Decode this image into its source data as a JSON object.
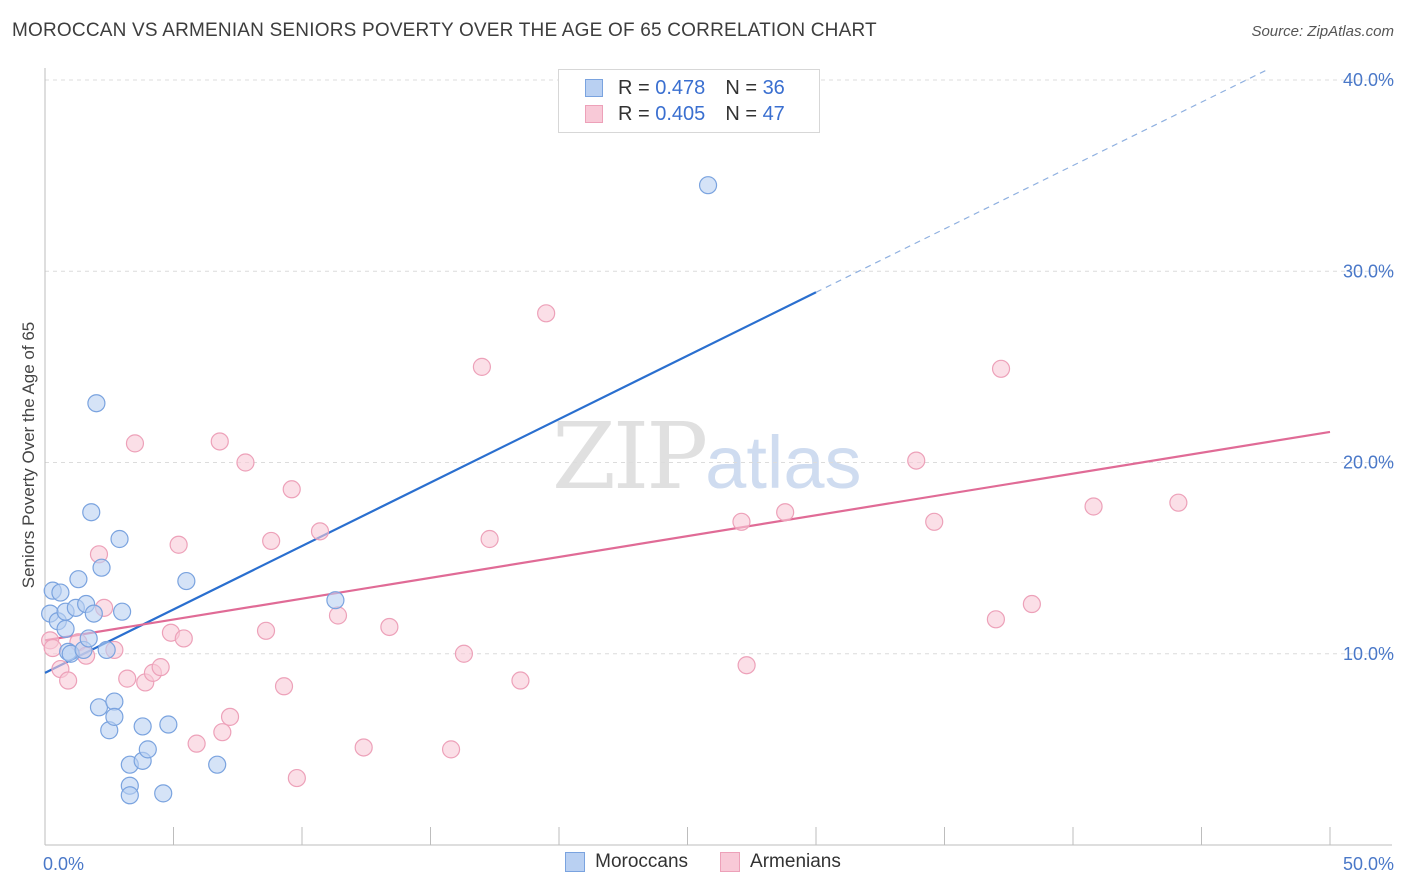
{
  "header": {
    "title": "MOROCCAN VS ARMENIAN SENIORS POVERTY OVER THE AGE OF 65 CORRELATION CHART",
    "source": "Source: ZipAtlas.com"
  },
  "watermark": {
    "zip": "ZIP",
    "atlas": "atlas"
  },
  "legend": {
    "rows": [
      {
        "r_label": "R = ",
        "r_value": "0.478",
        "n_label": "N = ",
        "n_value": "36"
      },
      {
        "r_label": "R = ",
        "r_value": "0.405",
        "n_label": "N = ",
        "n_value": "47"
      }
    ]
  },
  "bottom_legend": {
    "moroccans": "Moroccans",
    "armenians": "Armenians"
  },
  "chart_data": {
    "type": "scatter",
    "title": "MOROCCAN VS ARMENIAN SENIORS POVERTY OVER THE AGE OF 65 CORRELATION CHART",
    "xlabel": "",
    "ylabel": "Seniors Poverty Over the Age of 65",
    "xlim": [
      0,
      50
    ],
    "ylim": [
      0,
      40
    ],
    "x_tick_labels": [
      "0.0%",
      "50.0%"
    ],
    "y_ticks": [
      10,
      20,
      30,
      40
    ],
    "y_tick_labels": [
      "10.0%",
      "20.0%",
      "30.0%",
      "40.0%"
    ],
    "colors": {
      "moroccans_fill": "#b9d0f2",
      "moroccans_stroke": "#7aa3df",
      "moroccans_line": "#2a6fcf",
      "armenians_fill": "#f8c9d7",
      "armenians_stroke": "#eda1b9",
      "armenians_line": "#e06b96"
    },
    "series": [
      {
        "name": "Moroccans",
        "R": 0.478,
        "N": 36,
        "trend": {
          "x0": 0,
          "y0": 9.0,
          "x1": 30,
          "y1": 28.9,
          "dash_to_x": 47.5,
          "dash_to_y": 40.5
        },
        "points": [
          [
            0.2,
            12.1
          ],
          [
            0.3,
            13.3
          ],
          [
            0.5,
            11.7
          ],
          [
            0.6,
            13.2
          ],
          [
            0.8,
            11.3
          ],
          [
            0.8,
            12.2
          ],
          [
            0.9,
            10.1
          ],
          [
            1.0,
            10.0
          ],
          [
            1.2,
            12.4
          ],
          [
            1.3,
            13.9
          ],
          [
            1.5,
            10.2
          ],
          [
            1.6,
            12.6
          ],
          [
            1.7,
            10.8
          ],
          [
            1.8,
            17.4
          ],
          [
            1.9,
            12.1
          ],
          [
            2.0,
            23.1
          ],
          [
            2.1,
            7.2
          ],
          [
            2.2,
            14.5
          ],
          [
            2.4,
            10.2
          ],
          [
            2.5,
            6.0
          ],
          [
            2.7,
            7.5
          ],
          [
            2.7,
            6.7
          ],
          [
            2.9,
            16.0
          ],
          [
            3.0,
            12.2
          ],
          [
            3.3,
            4.2
          ],
          [
            3.3,
            3.1
          ],
          [
            3.3,
            2.6
          ],
          [
            3.8,
            6.2
          ],
          [
            3.8,
            4.4
          ],
          [
            4.0,
            5.0
          ],
          [
            4.6,
            2.7
          ],
          [
            4.8,
            6.3
          ],
          [
            5.5,
            13.8
          ],
          [
            6.7,
            4.2
          ],
          [
            11.3,
            12.8
          ],
          [
            25.8,
            34.5
          ]
        ]
      },
      {
        "name": "Armenians",
        "R": 0.405,
        "N": 47,
        "trend": {
          "x0": 0,
          "y0": 10.7,
          "x1": 50,
          "y1": 21.6
        },
        "points": [
          [
            0.2,
            10.7
          ],
          [
            0.3,
            10.3
          ],
          [
            0.6,
            9.2
          ],
          [
            0.9,
            8.6
          ],
          [
            1.3,
            10.6
          ],
          [
            1.6,
            9.9
          ],
          [
            2.1,
            15.2
          ],
          [
            2.3,
            12.4
          ],
          [
            2.7,
            10.2
          ],
          [
            3.2,
            8.7
          ],
          [
            3.5,
            21.0
          ],
          [
            3.9,
            8.5
          ],
          [
            4.2,
            9.0
          ],
          [
            4.5,
            9.3
          ],
          [
            4.9,
            11.1
          ],
          [
            5.2,
            15.7
          ],
          [
            5.4,
            10.8
          ],
          [
            5.9,
            5.3
          ],
          [
            6.8,
            21.1
          ],
          [
            6.9,
            5.9
          ],
          [
            7.2,
            6.7
          ],
          [
            7.8,
            20.0
          ],
          [
            8.6,
            11.2
          ],
          [
            8.8,
            15.9
          ],
          [
            9.3,
            8.3
          ],
          [
            9.6,
            18.6
          ],
          [
            9.8,
            3.5
          ],
          [
            10.7,
            16.4
          ],
          [
            11.4,
            12.0
          ],
          [
            12.4,
            5.1
          ],
          [
            13.4,
            11.4
          ],
          [
            15.8,
            5.0
          ],
          [
            16.3,
            10.0
          ],
          [
            17.0,
            25.0
          ],
          [
            17.3,
            16.0
          ],
          [
            18.5,
            8.6
          ],
          [
            19.5,
            27.8
          ],
          [
            27.1,
            16.9
          ],
          [
            27.3,
            9.4
          ],
          [
            28.8,
            17.4
          ],
          [
            33.9,
            20.1
          ],
          [
            34.6,
            16.9
          ],
          [
            37.0,
            11.8
          ],
          [
            37.2,
            24.9
          ],
          [
            38.4,
            12.6
          ],
          [
            40.8,
            17.7
          ],
          [
            44.1,
            17.9
          ]
        ]
      }
    ]
  }
}
